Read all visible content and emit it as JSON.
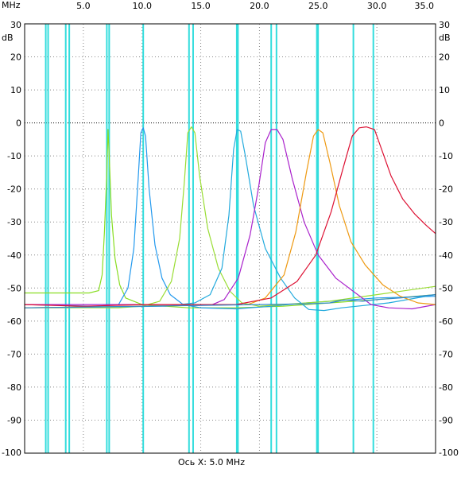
{
  "chart_data": {
    "type": "line",
    "x_unit_label": "MHz",
    "y_unit_label": "dB",
    "xlabel": "Ось X: 5.0 MHz",
    "xlim": [
      0,
      35
    ],
    "ylim": [
      -100,
      30
    ],
    "x_ticks": [
      {
        "value": 5,
        "label": "5.0"
      },
      {
        "value": 10,
        "label": "10.0"
      },
      {
        "value": 15,
        "label": "15.0"
      },
      {
        "value": 20,
        "label": "20.0"
      },
      {
        "value": 25,
        "label": "25.0"
      },
      {
        "value": 30,
        "label": "30.0"
      },
      {
        "value": 35,
        "label": "35.0"
      }
    ],
    "y_ticks": [
      {
        "value": 30,
        "label": "30"
      },
      {
        "value": 20,
        "label": "20"
      },
      {
        "value": 10,
        "label": "10"
      },
      {
        "value": 0,
        "label": "0"
      },
      {
        "value": -10,
        "label": "-10"
      },
      {
        "value": -20,
        "label": "-20"
      },
      {
        "value": -30,
        "label": "-30"
      },
      {
        "value": -40,
        "label": "-40"
      },
      {
        "value": -50,
        "label": "-50"
      },
      {
        "value": -60,
        "label": "-60"
      },
      {
        "value": -70,
        "label": "-70"
      },
      {
        "value": -80,
        "label": "-80"
      },
      {
        "value": -90,
        "label": "-90"
      },
      {
        "value": -100,
        "label": "-100"
      }
    ],
    "reference_line_y": 0,
    "grid": "dotted",
    "colors": {
      "grid": "#888888",
      "marker": "#33dddd",
      "axis": "#000000"
    },
    "vertical_markers": [
      1.8,
      2.0,
      3.5,
      3.8,
      7.0,
      7.2,
      10.1,
      14.0,
      14.35,
      18.07,
      18.17,
      21.0,
      21.45,
      24.89,
      24.99,
      28.0,
      29.7
    ],
    "series": [
      {
        "color": "#88dd22",
        "points": [
          [
            0,
            -51.5
          ],
          [
            5.5,
            -51.5
          ],
          [
            6.3,
            -50.8
          ],
          [
            6.6,
            -46
          ],
          [
            6.8,
            -33
          ],
          [
            7.0,
            -15
          ],
          [
            7.1,
            -2
          ],
          [
            7.2,
            -10
          ],
          [
            7.4,
            -28
          ],
          [
            7.7,
            -41
          ],
          [
            8.1,
            -49
          ],
          [
            8.6,
            -53
          ],
          [
            10,
            -55
          ],
          [
            14,
            -56
          ],
          [
            18,
            -56
          ],
          [
            22,
            -55.5
          ],
          [
            26,
            -54.5
          ],
          [
            30,
            -53.5
          ],
          [
            35,
            -52
          ]
        ]
      },
      {
        "color": "#2299ee",
        "points": [
          [
            0,
            -55
          ],
          [
            6,
            -55.5
          ],
          [
            8,
            -55
          ],
          [
            8.8,
            -50
          ],
          [
            9.3,
            -38
          ],
          [
            9.7,
            -15
          ],
          [
            9.9,
            -3
          ],
          [
            10.1,
            -1.5
          ],
          [
            10.3,
            -4
          ],
          [
            10.6,
            -20
          ],
          [
            11.1,
            -37
          ],
          [
            11.7,
            -47
          ],
          [
            12.4,
            -52
          ],
          [
            13.5,
            -55
          ],
          [
            15,
            -56
          ],
          [
            18,
            -56.3
          ],
          [
            21,
            -55.5
          ],
          [
            24,
            -54.5
          ],
          [
            30,
            -53
          ],
          [
            35,
            -52.5
          ]
        ]
      },
      {
        "color": "#99dd33",
        "points": [
          [
            0,
            -56
          ],
          [
            8,
            -56
          ],
          [
            10,
            -55.5
          ],
          [
            11.5,
            -54
          ],
          [
            12.5,
            -48
          ],
          [
            13.2,
            -35
          ],
          [
            13.6,
            -18
          ],
          [
            13.9,
            -3
          ],
          [
            14.2,
            -1.2
          ],
          [
            14.5,
            -3
          ],
          [
            14.9,
            -16
          ],
          [
            15.6,
            -32
          ],
          [
            16.5,
            -44
          ],
          [
            17.5,
            -51
          ],
          [
            18.5,
            -54.5
          ],
          [
            20,
            -55.5
          ],
          [
            22,
            -55
          ],
          [
            26,
            -54
          ],
          [
            30,
            -52
          ],
          [
            35,
            -49.5
          ]
        ]
      },
      {
        "color": "#22aadd",
        "points": [
          [
            0,
            -56
          ],
          [
            12,
            -55.5
          ],
          [
            14.5,
            -54.5
          ],
          [
            15.8,
            -52
          ],
          [
            16.8,
            -44
          ],
          [
            17.4,
            -28
          ],
          [
            17.8,
            -8
          ],
          [
            18.1,
            -2
          ],
          [
            18.4,
            -2.5
          ],
          [
            18.8,
            -10
          ],
          [
            19.5,
            -25
          ],
          [
            20.5,
            -38
          ],
          [
            21.8,
            -47
          ],
          [
            23,
            -53
          ],
          [
            24.2,
            -56.5
          ],
          [
            25.5,
            -56.8
          ],
          [
            27,
            -56
          ],
          [
            31,
            -54.5
          ],
          [
            35,
            -52
          ]
        ]
      },
      {
        "color": "#aa22cc",
        "points": [
          [
            0,
            -55
          ],
          [
            16,
            -55
          ],
          [
            17,
            -53.5
          ],
          [
            18.2,
            -47
          ],
          [
            19.2,
            -34
          ],
          [
            19.9,
            -20
          ],
          [
            20.5,
            -6
          ],
          [
            21,
            -2
          ],
          [
            21.5,
            -2
          ],
          [
            22,
            -5
          ],
          [
            22.8,
            -17
          ],
          [
            23.8,
            -30
          ],
          [
            25,
            -40
          ],
          [
            26.5,
            -47
          ],
          [
            28,
            -51
          ],
          [
            29.5,
            -55
          ],
          [
            31,
            -56
          ],
          [
            33,
            -56.3
          ],
          [
            35,
            -55
          ]
        ]
      },
      {
        "color": "#ee9911",
        "points": [
          [
            0,
            -56
          ],
          [
            19,
            -55
          ],
          [
            20.5,
            -53
          ],
          [
            22.1,
            -46
          ],
          [
            23.1,
            -33
          ],
          [
            24,
            -15
          ],
          [
            24.6,
            -4
          ],
          [
            25,
            -2
          ],
          [
            25.4,
            -3
          ],
          [
            26,
            -12
          ],
          [
            26.8,
            -25
          ],
          [
            27.8,
            -36
          ],
          [
            29,
            -43
          ],
          [
            30.5,
            -49
          ],
          [
            32,
            -52.5
          ],
          [
            33.5,
            -54.5
          ],
          [
            35,
            -55
          ]
        ]
      },
      {
        "color": "#dd1133",
        "points": [
          [
            0,
            -55
          ],
          [
            5,
            -55.5
          ],
          [
            10,
            -55
          ],
          [
            18,
            -55
          ],
          [
            21,
            -53
          ],
          [
            23.2,
            -48
          ],
          [
            24.8,
            -40
          ],
          [
            26.1,
            -27
          ],
          [
            27.1,
            -14
          ],
          [
            27.9,
            -4
          ],
          [
            28.5,
            -1.5
          ],
          [
            29.1,
            -1.2
          ],
          [
            29.8,
            -2
          ],
          [
            30.4,
            -8
          ],
          [
            31.2,
            -16
          ],
          [
            32.2,
            -23
          ],
          [
            33.2,
            -27.5
          ],
          [
            34.2,
            -31
          ],
          [
            35,
            -33.5
          ]
        ]
      },
      {
        "color": "#3388cc",
        "points": [
          [
            0,
            -56
          ],
          [
            10,
            -55.5
          ],
          [
            20,
            -55
          ],
          [
            24,
            -54.8
          ],
          [
            26,
            -54.5
          ],
          [
            27.2,
            -53.6
          ],
          [
            28.8,
            -54
          ],
          [
            30,
            -53.5
          ],
          [
            32,
            -53
          ],
          [
            35,
            -52
          ]
        ]
      }
    ]
  }
}
